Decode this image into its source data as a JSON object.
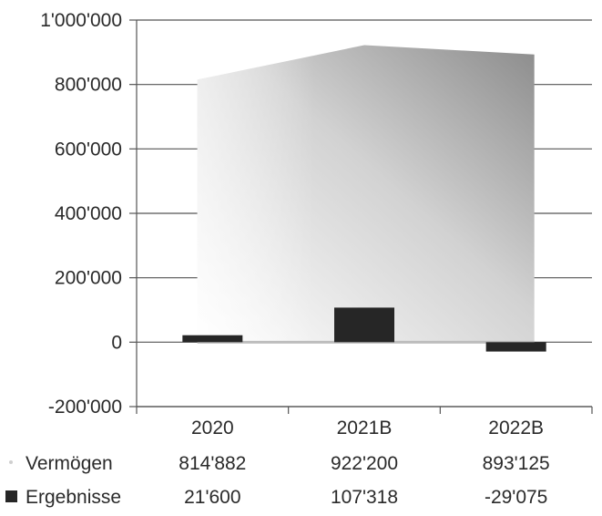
{
  "chart_data": {
    "type": "area",
    "categories": [
      "2020",
      "2021B",
      "2022B"
    ],
    "ylim": [
      -200000,
      1000000
    ],
    "yticks": [
      {
        "value": 1000000,
        "label": "1'000'000"
      },
      {
        "value": 800000,
        "label": "800'000"
      },
      {
        "value": 600000,
        "label": "600'000"
      },
      {
        "value": 400000,
        "label": "400'000"
      },
      {
        "value": 200000,
        "label": "200'000"
      },
      {
        "value": 0,
        "label": "0"
      },
      {
        "value": -200000,
        "label": "-200'000"
      }
    ],
    "grid": true,
    "legend_placement": "bottom table",
    "series": [
      {
        "name": "Vermögen",
        "type": "area",
        "color": "#9a9a9a",
        "values": [
          814882,
          922200,
          893125
        ],
        "value_labels": [
          "814'882",
          "922'200",
          "893'125"
        ]
      },
      {
        "name": "Ergebnisse",
        "type": "bar",
        "color": "#262626",
        "values": [
          21600,
          107318,
          -29075
        ],
        "value_labels": [
          "21'600",
          "107'318",
          "-29'075"
        ]
      }
    ]
  }
}
